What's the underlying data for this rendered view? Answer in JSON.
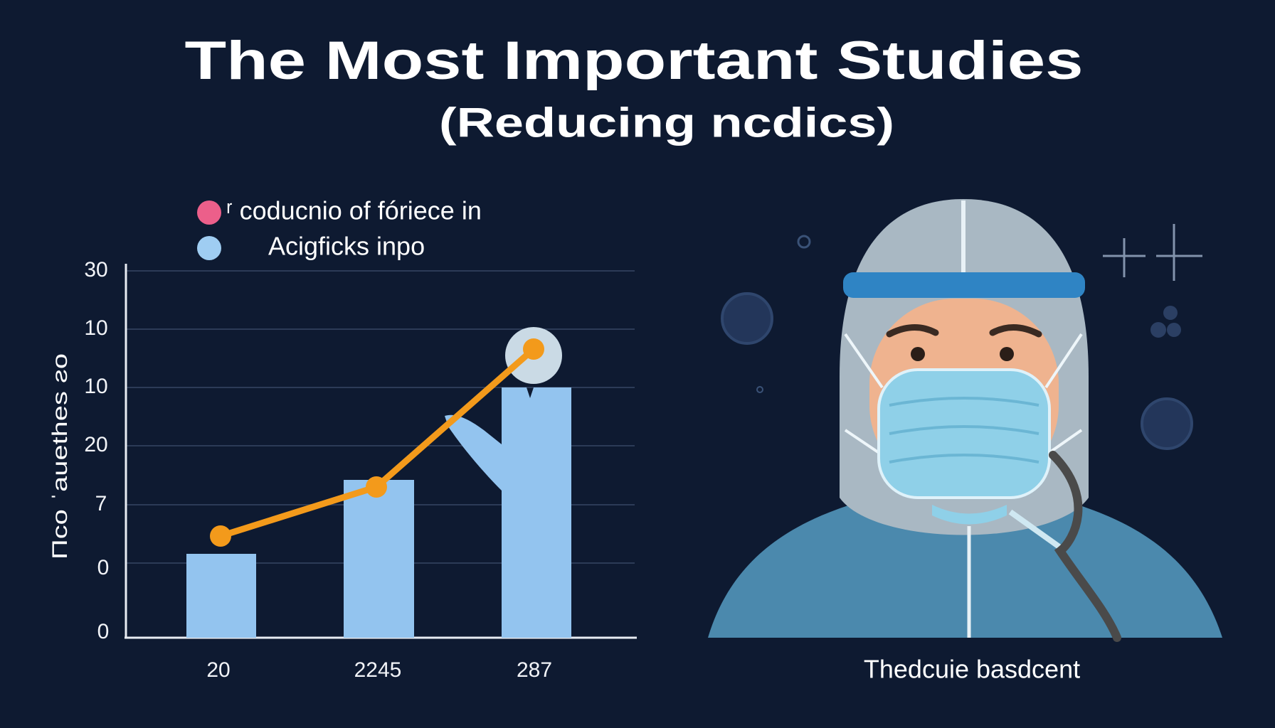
{
  "header": {
    "title": "The Most Important Studies",
    "subtitle": "(Reducing ncdics)"
  },
  "chart": {
    "legend": [
      "ʳ coducnio of fóriece in",
      "Acigficks inpo"
    ],
    "y_axis_label": "Πco ˈauethes ƨo",
    "y_labels": [
      "30",
      "10",
      "10",
      "20",
      "7",
      "0",
      "0"
    ],
    "x_labels": [
      "20",
      "2245",
      "287"
    ]
  },
  "illustration": {
    "caption": "Thedcuie basdcent"
  }
}
